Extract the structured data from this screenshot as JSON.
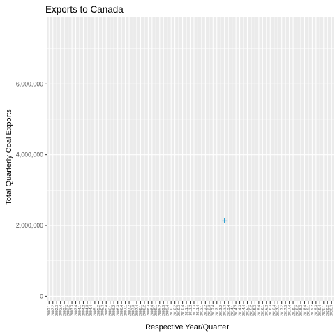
{
  "chart_data": {
    "type": "scatter",
    "title": "Exports to Canada",
    "xlabel": "Respective Year/Quarter",
    "ylabel": "Total Quarterly Coal Exports",
    "categories": [
      "2002.1",
      "2002.2",
      "2002.3",
      "2002.4",
      "2003.1",
      "2003.2",
      "2003.3",
      "2003.4",
      "2004.1",
      "2004.2",
      "2004.3",
      "2004.4",
      "2005.1",
      "2005.2",
      "2005.3",
      "2005.4",
      "2006.1",
      "2006.2",
      "2006.3",
      "2006.4",
      "2007.1",
      "2007.2",
      "2007.3",
      "2007.4",
      "2008.1",
      "2008.2",
      "2008.3",
      "2008.4",
      "2009.1",
      "2009.2",
      "2009.3",
      "2009.4",
      "2010.1",
      "2010.2",
      "2010.3",
      "2010.4",
      "2011.1",
      "2011.2",
      "2011.3",
      "2011.4",
      "2012.1",
      "2012.2",
      "2012.3",
      "2012.4",
      "2013.1",
      "2013.2",
      "2013.3",
      "2013.4",
      "2014.1",
      "2014.2",
      "2014.3",
      "2014.4",
      "2015.1",
      "2015.2",
      "2015.3",
      "2015.4",
      "2016.1",
      "2016.2",
      "2016.3",
      "2016.4",
      "2017.1",
      "2017.2",
      "2017.3",
      "2017.4",
      "2018.1",
      "2018.2",
      "2018.3",
      "2018.4",
      "2019.1",
      "2019.2",
      "2019.3",
      "2019.4",
      "2020.1",
      "2020.2",
      "2020.3"
    ],
    "yticks": [
      0,
      2000000,
      4000000,
      6000000
    ],
    "ytick_labels": [
      "0",
      "2,000,000",
      "4,000,000",
      "6,000,000"
    ],
    "ylim": [
      -150000,
      7900000
    ],
    "points": [
      {
        "x": "2013.3",
        "y": 2130000
      }
    ],
    "marker": "plus",
    "colors": {
      "point": "#1f9bd1",
      "panel": "#ebebeb",
      "grid": "#ffffff",
      "tick": "#333333"
    },
    "grid": true,
    "legend": "none"
  }
}
